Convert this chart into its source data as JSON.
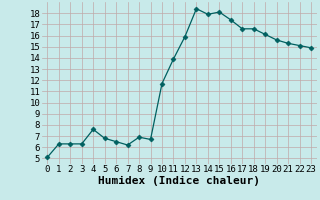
{
  "x": [
    0,
    1,
    2,
    3,
    4,
    5,
    6,
    7,
    8,
    9,
    10,
    11,
    12,
    13,
    14,
    15,
    16,
    17,
    18,
    19,
    20,
    21,
    22,
    23
  ],
  "y": [
    5.1,
    6.3,
    6.3,
    6.3,
    7.6,
    6.8,
    6.5,
    6.2,
    6.9,
    6.7,
    11.7,
    13.9,
    15.9,
    18.4,
    17.9,
    18.1,
    17.4,
    16.6,
    16.6,
    16.1,
    15.6,
    15.3,
    15.1,
    14.9
  ],
  "xlabel": "Humidex (Indice chaleur)",
  "ylim": [
    4.5,
    19.0
  ],
  "xlim": [
    -0.5,
    23.5
  ],
  "yticks": [
    5,
    6,
    7,
    8,
    9,
    10,
    11,
    12,
    13,
    14,
    15,
    16,
    17,
    18
  ],
  "xticks": [
    0,
    1,
    2,
    3,
    4,
    5,
    6,
    7,
    8,
    9,
    10,
    11,
    12,
    13,
    14,
    15,
    16,
    17,
    18,
    19,
    20,
    21,
    22,
    23
  ],
  "line_color": "#006060",
  "marker": "D",
  "marker_size": 2.5,
  "bg_color": "#c8eaea",
  "grid_color": "#c0a8a8",
  "xlabel_fontsize": 8,
  "tick_fontsize": 6.5
}
